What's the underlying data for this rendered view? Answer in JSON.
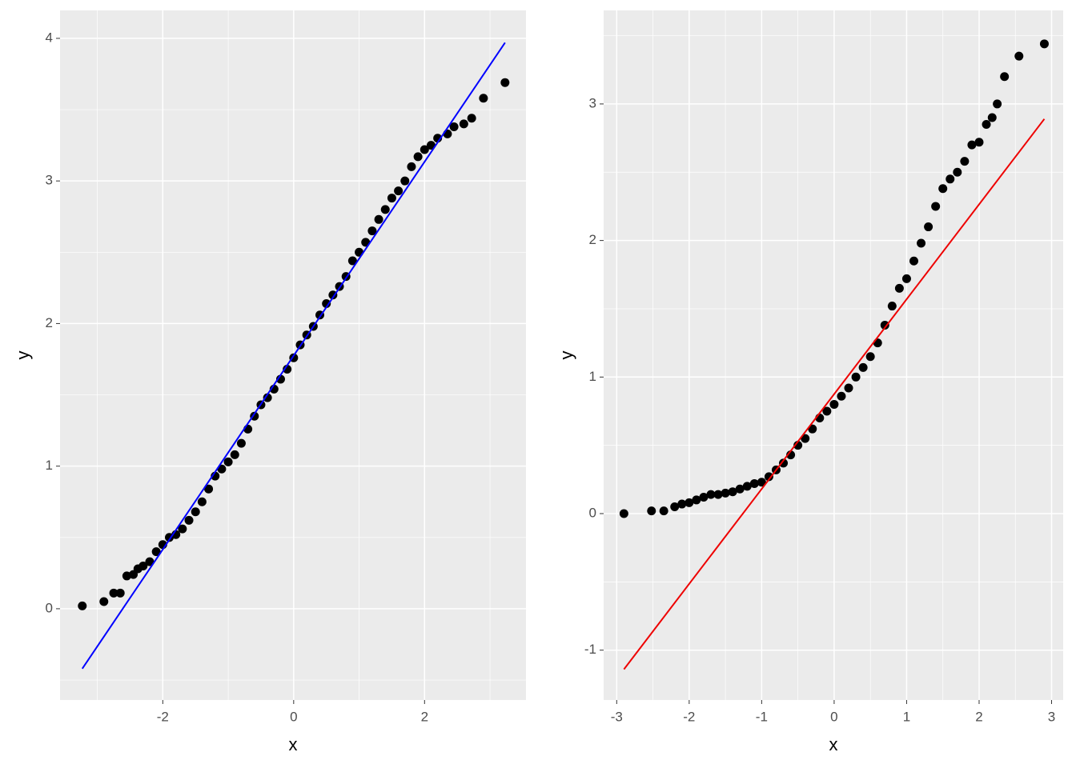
{
  "chart_data": [
    {
      "type": "qq",
      "x_label": "x",
      "y_label": "y",
      "xlim": [
        -3.57,
        3.55
      ],
      "ylim": [
        -0.64,
        4.196
      ],
      "xticks": [
        -2,
        0,
        2
      ],
      "yticks": [
        0,
        1,
        2,
        3,
        4
      ],
      "minor_xticks": [
        -3,
        -1,
        1,
        3
      ],
      "minor_yticks": [
        -0.5,
        0.5,
        1.5,
        2.5,
        3.5
      ],
      "point_color": "#000000",
      "x": [
        -3.23,
        -2.9,
        -2.75,
        -2.65,
        -2.55,
        -2.45,
        -2.38,
        -2.3,
        -2.2,
        -2.1,
        -2.0,
        -1.9,
        -1.8,
        -1.7,
        -1.6,
        -1.5,
        -1.4,
        -1.3,
        -1.2,
        -1.1,
        -1.0,
        -0.9,
        -0.8,
        -0.7,
        -0.6,
        -0.5,
        -0.4,
        -0.3,
        -0.2,
        -0.1,
        0,
        0.1,
        0.2,
        0.3,
        0.4,
        0.5,
        0.6,
        0.7,
        0.8,
        0.9,
        1.0,
        1.1,
        1.2,
        1.3,
        1.4,
        1.5,
        1.6,
        1.7,
        1.8,
        1.9,
        2.0,
        2.1,
        2.2,
        2.35,
        2.45,
        2.6,
        2.72,
        2.9,
        3.23
      ],
      "y": [
        0.02,
        0.05,
        0.11,
        0.11,
        0.23,
        0.24,
        0.28,
        0.3,
        0.33,
        0.4,
        0.45,
        0.5,
        0.52,
        0.56,
        0.62,
        0.68,
        0.75,
        0.84,
        0.93,
        0.98,
        1.03,
        1.08,
        1.16,
        1.26,
        1.35,
        1.43,
        1.48,
        1.54,
        1.61,
        1.68,
        1.76,
        1.85,
        1.92,
        1.98,
        2.06,
        2.14,
        2.2,
        2.26,
        2.33,
        2.44,
        2.5,
        2.57,
        2.65,
        2.73,
        2.8,
        2.88,
        2.93,
        3.0,
        3.1,
        3.17,
        3.22,
        3.25,
        3.3,
        3.33,
        3.38,
        3.4,
        3.44,
        3.58,
        3.69
      ],
      "line": {
        "x": [
          -3.23,
          3.23
        ],
        "y": [
          -0.42,
          3.97
        ],
        "color": "#0000ff"
      }
    },
    {
      "type": "qq",
      "x_label": "x",
      "y_label": "y",
      "xlim": [
        -3.18,
        3.16
      ],
      "ylim": [
        -1.365,
        3.685
      ],
      "xticks": [
        -3,
        -2,
        -1,
        0,
        1,
        2,
        3
      ],
      "yticks": [
        -1,
        0,
        1,
        2,
        3
      ],
      "minor_xticks": [
        -2.5,
        -1.5,
        -0.5,
        0.5,
        1.5,
        2.5
      ],
      "minor_yticks": [
        -0.5,
        0.5,
        1.5,
        2.5,
        3.5
      ],
      "point_color": "#000000",
      "x": [
        -2.9,
        -2.52,
        -2.35,
        -2.2,
        -2.1,
        -2.0,
        -1.9,
        -1.8,
        -1.7,
        -1.6,
        -1.5,
        -1.4,
        -1.3,
        -1.2,
        -1.1,
        -1.0,
        -0.9,
        -0.8,
        -0.7,
        -0.6,
        -0.5,
        -0.4,
        -0.3,
        -0.2,
        -0.1,
        0,
        0.1,
        0.2,
        0.3,
        0.4,
        0.5,
        0.6,
        0.7,
        0.8,
        0.9,
        1.0,
        1.1,
        1.2,
        1.3,
        1.4,
        1.5,
        1.6,
        1.7,
        1.8,
        1.9,
        2.0,
        2.1,
        2.18,
        2.25,
        2.35,
        2.55,
        2.9
      ],
      "y": [
        0,
        0.02,
        0.02,
        0.05,
        0.07,
        0.08,
        0.1,
        0.12,
        0.14,
        0.14,
        0.15,
        0.16,
        0.18,
        0.2,
        0.22,
        0.23,
        0.27,
        0.32,
        0.37,
        0.43,
        0.5,
        0.55,
        0.62,
        0.7,
        0.75,
        0.8,
        0.86,
        0.92,
        1.0,
        1.07,
        1.15,
        1.25,
        1.38,
        1.52,
        1.65,
        1.72,
        1.85,
        1.98,
        2.1,
        2.25,
        2.38,
        2.45,
        2.5,
        2.58,
        2.7,
        2.72,
        2.85,
        2.9,
        3.0,
        3.2,
        3.35,
        3.44
      ],
      "line": {
        "x": [
          -2.9,
          2.9
        ],
        "y": [
          -1.14,
          2.89
        ],
        "color": "#ee0000"
      }
    }
  ]
}
